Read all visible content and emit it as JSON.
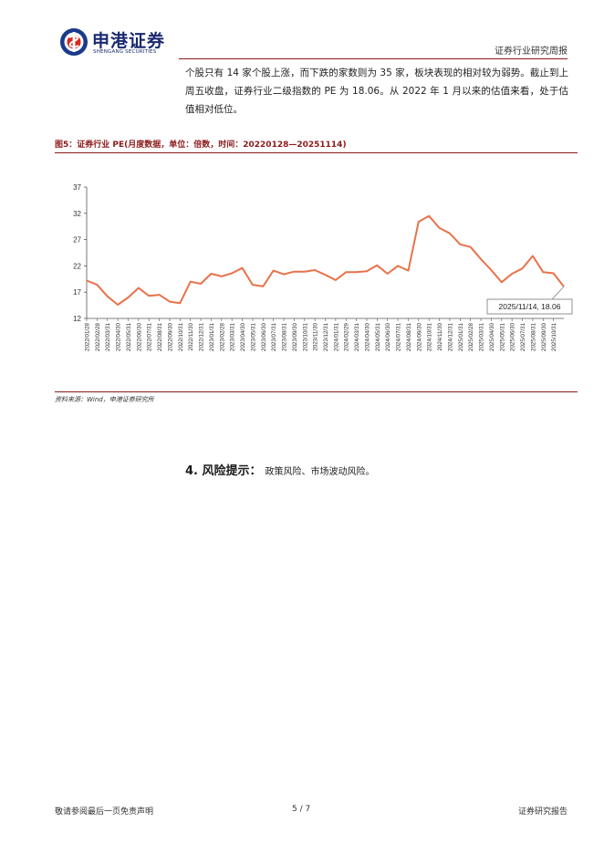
{
  "header": {
    "logo_cn": "申港证券",
    "logo_en": "SHENGANG SECURITIES",
    "report_type": "证券行业研究周报"
  },
  "body": {
    "paragraph": "个股只有 14 家个股上涨，而下跌的家数则为 35 家，板块表现的相对较为弱势。截止到上周五收盘，证券行业二级指数的 PE 为 18.06。从 2022 年 1 月以来的估值来看，处于估值相对低位。"
  },
  "figure": {
    "title": "图5：证券行业 PE(月度数据，单位：倍数，时间：20220128—20251114)",
    "source": "资料来源：Wind，申港证券研究所"
  },
  "chart_data": {
    "type": "line",
    "x": [
      "2022/01/28",
      "2022/02/28",
      "2022/03/31",
      "2022/04/30",
      "2022/05/31",
      "2022/06/30",
      "2022/07/31",
      "2022/08/31",
      "2022/09/30",
      "2022/10/31",
      "2022/11/30",
      "2022/12/31",
      "2023/01/31",
      "2023/02/28",
      "2023/03/31",
      "2023/04/30",
      "2023/05/31",
      "2023/06/30",
      "2023/07/31",
      "2023/08/31",
      "2023/09/30",
      "2023/10/31",
      "2023/11/30",
      "2023/12/31",
      "2024/01/31",
      "2024/02/29",
      "2024/03/31",
      "2024/04/30",
      "2024/05/31",
      "2024/06/30",
      "2024/07/31",
      "2024/08/31",
      "2024/09/30",
      "2024/10/31",
      "2024/11/30",
      "2024/12/31",
      "2025/01/31",
      "2025/02/28",
      "2025/03/31",
      "2025/04/30",
      "2025/05/31",
      "2025/06/30",
      "2025/07/31",
      "2025/08/31",
      "2025/09/30",
      "2025/10/31",
      "2025/11/14"
    ],
    "x_tick_labels": [
      "2022/01/28",
      "2022/02/28",
      "2022/03/31",
      "2022/04/30",
      "2022/05/31",
      "2022/06/30",
      "2022/07/31",
      "2022/08/31",
      "2022/09/30",
      "2022/10/31",
      "2022/11/30",
      "2022/12/31",
      "2023/01/31",
      "2023/02/28",
      "2023/03/31",
      "2023/04/30",
      "2023/05/31",
      "2023/06/30",
      "2023/07/31",
      "2023/08/31",
      "2023/09/30",
      "2023/10/31",
      "2023/11/30",
      "2023/12/31",
      "2024/01/31",
      "2024/02/29",
      "2024/03/31",
      "2024/04/30",
      "2024/05/31",
      "2024/06/30",
      "2024/07/31",
      "2024/08/31",
      "2024/09/30",
      "2024/10/31",
      "2024/11/30",
      "2024/12/31",
      "2025/01/31",
      "2025/02/28",
      "2025/03/31",
      "2025/04/30",
      "2025/05/31",
      "2025/06/30",
      "2025/07/31",
      "2025/08/31",
      "2025/09/30",
      "2025/10/31"
    ],
    "values": [
      19.2,
      18.4,
      16.2,
      14.6,
      16.0,
      17.8,
      16.3,
      16.5,
      15.2,
      14.9,
      19.0,
      18.6,
      20.5,
      20.0,
      20.6,
      21.6,
      18.4,
      18.1,
      21.1,
      20.4,
      20.9,
      20.9,
      21.2,
      20.3,
      19.3,
      20.8,
      20.8,
      21.0,
      22.1,
      20.5,
      22.0,
      21.1,
      30.4,
      31.5,
      29.2,
      28.2,
      26.1,
      25.6,
      23.3,
      21.2,
      18.9,
      20.5,
      21.5,
      23.9,
      20.8,
      20.6,
      18.06
    ],
    "y_ticks": [
      12,
      17,
      22,
      27,
      32,
      37
    ],
    "ylim": [
      12,
      37
    ],
    "color": "#e8724a",
    "annotation": "2025/11/14, 18.06",
    "grid": false
  },
  "risk": {
    "title": "4. 风险提示：",
    "text": "政策风险、市场波动风险。"
  },
  "footer": {
    "left": "敬请参阅最后一页免责声明",
    "page": "5 / 7",
    "right": "证券研究报告"
  }
}
